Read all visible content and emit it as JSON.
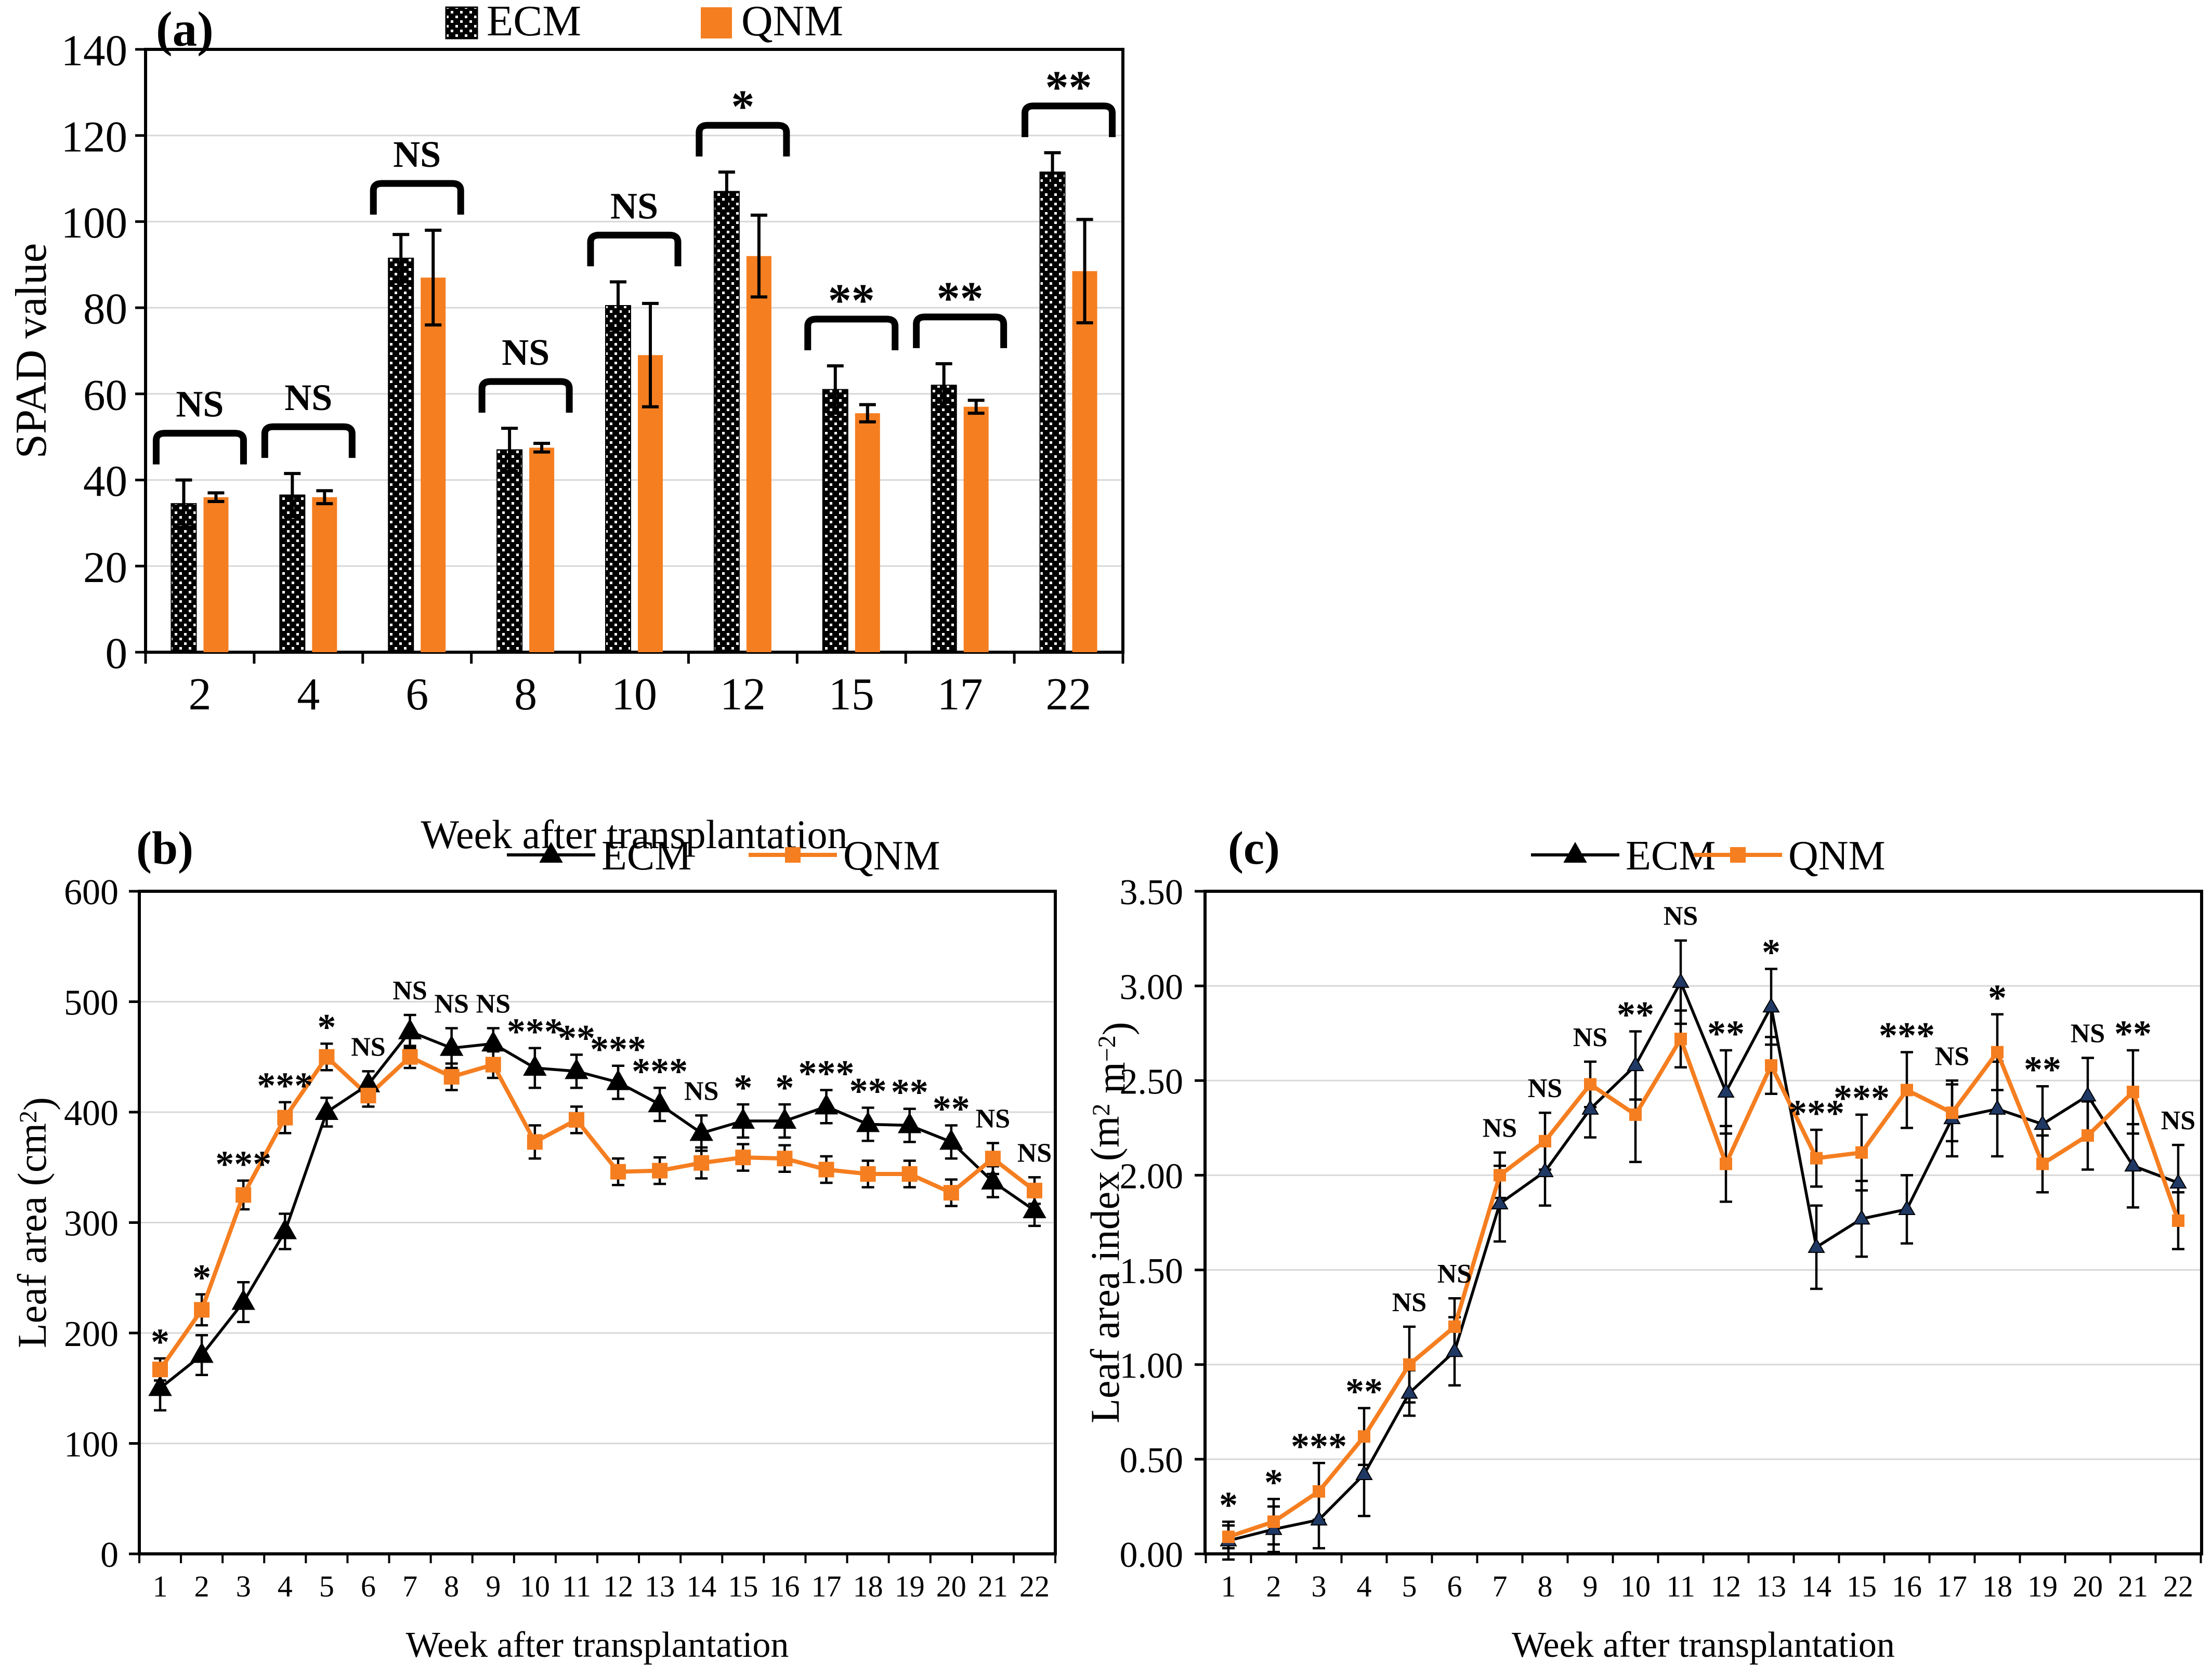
{
  "figure": {
    "background": "#ffffff",
    "colors": {
      "ecm": "#000000",
      "qnm": "#F57E20",
      "ecm_marker_c": "#1F3864",
      "gridline": "#D8D8D8",
      "axis": "#000000",
      "error_bar": "#000000"
    }
  },
  "chart_data": [
    {
      "id": "a",
      "type": "bar",
      "panel_label": "(a)",
      "xlabel": "Week after transplantation",
      "ylabel": "SPAD value",
      "ylim": [
        0,
        140
      ],
      "ytick_step": 20,
      "yticks": [
        "0",
        "20",
        "40",
        "60",
        "80",
        "100",
        "120",
        "140"
      ],
      "grid": true,
      "legend": [
        "ECM",
        "QNM"
      ],
      "categories": [
        "2",
        "4",
        "6",
        "8",
        "10",
        "12",
        "15",
        "17",
        "22"
      ],
      "series": [
        {
          "name": "ECM",
          "style": "dotted-black-bar",
          "values": [
            34.5,
            36.5,
            91.5,
            47,
            80.5,
            107,
            61,
            62,
            111.5
          ],
          "errors": [
            5.5,
            5,
            5.5,
            5,
            5.5,
            4.5,
            5.5,
            5,
            4.5
          ]
        },
        {
          "name": "QNM",
          "style": "orange-bar",
          "values": [
            36,
            36,
            87,
            47.5,
            69,
            92,
            55.5,
            57,
            88.5
          ],
          "errors": [
            1,
            1.5,
            11,
            1,
            12,
            9.5,
            2,
            1.5,
            12
          ]
        }
      ],
      "significance": [
        "NS",
        "NS",
        "NS",
        "NS",
        "NS",
        "*",
        "**",
        "**",
        "**"
      ]
    },
    {
      "id": "b",
      "type": "line",
      "panel_label": "(b)",
      "xlabel": "Week after transplantation",
      "ylabel": "Leaf area (cm^{2})",
      "ylim": [
        0,
        600
      ],
      "ytick_step": 100,
      "yticks": [
        "0",
        "100",
        "200",
        "300",
        "400",
        "500",
        "600"
      ],
      "grid": true,
      "legend": [
        "ECM",
        "QNM"
      ],
      "x": [
        "1",
        "2",
        "3",
        "4",
        "5",
        "6",
        "7",
        "8",
        "9",
        "10",
        "11",
        "12",
        "13",
        "14",
        "15",
        "16",
        "17",
        "18",
        "19",
        "20",
        "21",
        "22"
      ],
      "series": [
        {
          "name": "ECM",
          "style": "black-line-triangle",
          "values": [
            150,
            180,
            228,
            292,
            400,
            425,
            473,
            458,
            462,
            440,
            437,
            427,
            407,
            381,
            392,
            392,
            405,
            389,
            388,
            373,
            337,
            311
          ],
          "errors": [
            20,
            18,
            18,
            16,
            13,
            12,
            15,
            18,
            14,
            18,
            15,
            15,
            15,
            16,
            15,
            15,
            15,
            15,
            15,
            15,
            14,
            14
          ]
        },
        {
          "name": "QNM",
          "style": "orange-line-square",
          "values": [
            167,
            221,
            325,
            395,
            450,
            415,
            450,
            432,
            443,
            373,
            393,
            346,
            347,
            354,
            359,
            358,
            348,
            344,
            344,
            327,
            358,
            329
          ],
          "errors": [
            10,
            14,
            13,
            14,
            12,
            10,
            10,
            12,
            12,
            15,
            12,
            12,
            12,
            14,
            12,
            12,
            12,
            12,
            12,
            12,
            14,
            12
          ]
        }
      ],
      "significance": [
        "*",
        "*",
        "***",
        "***",
        "*",
        "NS",
        "NS",
        "NS",
        "NS",
        "***",
        "**",
        "***",
        "***",
        "NS",
        "*",
        "*",
        "***",
        "**",
        "**",
        "**",
        "NS",
        "NS"
      ]
    },
    {
      "id": "c",
      "type": "line",
      "panel_label": "(c)",
      "xlabel": "Week after transplantation",
      "ylabel": "Leaf area index (m^{2} m^{−2})",
      "ylim": [
        0,
        3.5
      ],
      "ytick_step": 0.5,
      "yticks": [
        "0.00",
        "0.50",
        "1.00",
        "1.50",
        "2.00",
        "2.50",
        "3.00",
        "3.50"
      ],
      "grid": true,
      "legend": [
        "ECM",
        "QNM"
      ],
      "x": [
        "1",
        "2",
        "3",
        "4",
        "5",
        "6",
        "7",
        "8",
        "9",
        "10",
        "11",
        "12",
        "13",
        "14",
        "15",
        "16",
        "17",
        "18",
        "19",
        "20",
        "21",
        "22"
      ],
      "series": [
        {
          "name": "ECM",
          "style": "black-line-triangle",
          "values": [
            0.07,
            0.13,
            0.18,
            0.42,
            0.85,
            1.07,
            1.85,
            2.02,
            2.35,
            2.58,
            3.02,
            2.44,
            2.89,
            1.62,
            1.77,
            1.82,
            2.3,
            2.35,
            2.27,
            2.42,
            2.05,
            1.96
          ],
          "errors": [
            0.1,
            0.12,
            0.15,
            0.22,
            0.12,
            0.18,
            0.2,
            0.18,
            0.15,
            0.18,
            0.22,
            0.22,
            0.2,
            0.22,
            0.2,
            0.18,
            0.2,
            0.25,
            0.2,
            0.2,
            0.22,
            0.2
          ]
        },
        {
          "name": "QNM",
          "style": "orange-line-square",
          "values": [
            0.09,
            0.17,
            0.33,
            0.62,
            1.0,
            1.2,
            2.0,
            2.18,
            2.48,
            2.32,
            2.72,
            2.06,
            2.58,
            2.09,
            2.12,
            2.45,
            2.33,
            2.65,
            2.06,
            2.21,
            2.44,
            1.76
          ],
          "errors": [
            0.06,
            0.12,
            0.15,
            0.15,
            0.2,
            0.15,
            0.12,
            0.15,
            0.12,
            0.25,
            0.15,
            0.2,
            0.15,
            0.15,
            0.2,
            0.2,
            0.15,
            0.2,
            0.15,
            0.18,
            0.22,
            0.15
          ]
        }
      ],
      "significance": [
        "*",
        "*",
        "***",
        "**",
        "NS",
        "NS",
        "NS",
        "NS",
        "NS",
        "**",
        "NS",
        "**",
        "*",
        "***",
        "***",
        "***",
        "NS",
        "*",
        "**",
        "NS",
        "**",
        "NS"
      ]
    }
  ]
}
